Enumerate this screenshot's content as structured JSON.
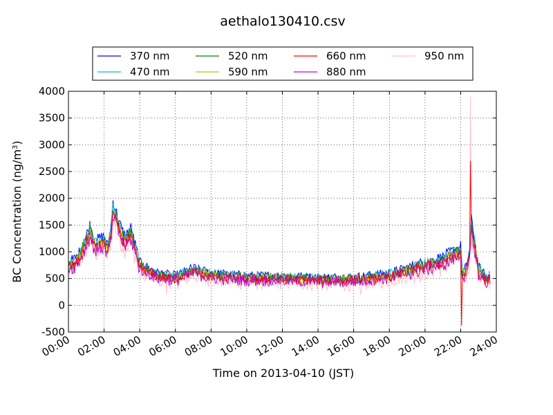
{
  "chart_data": {
    "type": "line",
    "title": "aethalo130410.csv",
    "xlabel": "Time on 2013-04-10 (JST)",
    "ylabel_main": "BC Concentration (ng/m",
    "ylabel_sup": "3",
    "ylabel_end": ")",
    "xlim": [
      "00:00",
      "24:00"
    ],
    "ylim": [
      -500,
      4000
    ],
    "grid": true,
    "legend_position": "top, above plot",
    "x_ticks": [
      "00:00",
      "02:00",
      "04:00",
      "06:00",
      "08:00",
      "10:00",
      "12:00",
      "14:00",
      "16:00",
      "18:00",
      "20:00",
      "22:00",
      "24:00"
    ],
    "y_ticks": [
      -500,
      0,
      500,
      1000,
      1500,
      2000,
      2500,
      3000,
      3500,
      4000
    ],
    "series": [
      {
        "name": "370 nm",
        "color": "#0000ff"
      },
      {
        "name": "470 nm",
        "color": "#00bfbf"
      },
      {
        "name": "520 nm",
        "color": "#008000"
      },
      {
        "name": "590 nm",
        "color": "#bfbf00"
      },
      {
        "name": "660 nm",
        "color": "#ff0000"
      },
      {
        "name": "880 nm",
        "color": "#bf00bf"
      },
      {
        "name": "950 nm",
        "color": "#ffc0cb"
      }
    ],
    "x_hours": [
      0,
      0.5,
      1.0,
      1.2,
      1.5,
      2.0,
      2.2,
      2.4,
      2.5,
      3.0,
      3.2,
      3.5,
      4.0,
      5.0,
      6.0,
      7.0,
      8.0,
      10.0,
      12.0,
      14.0,
      16.0,
      18.0,
      19.0,
      20.0,
      21.0,
      21.5,
      22.0,
      22.1,
      22.3,
      22.5,
      22.6,
      22.8,
      23.0,
      23.5,
      23.7
    ],
    "baseline_370nm": [
      800,
      900,
      1300,
      1500,
      1200,
      1300,
      1100,
      1500,
      1950,
      1400,
      1300,
      1450,
      800,
      600,
      550,
      700,
      600,
      550,
      550,
      520,
      520,
      600,
      700,
      800,
      900,
      1000,
      1100,
      600,
      700,
      1000,
      1600,
      1200,
      700,
      500,
      600
    ]
  }
}
